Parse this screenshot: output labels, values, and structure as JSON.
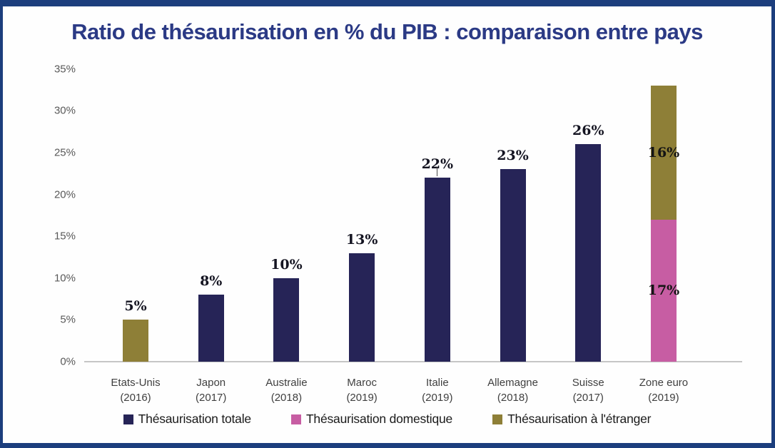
{
  "title": "Ratio de thésaurisation en % du PIB : comparaison entre pays",
  "colors": {
    "frame_border": "#1C3E7D",
    "background": "#FEFEFE",
    "title_text": "#2B3A85",
    "axis_line": "#C6C6C6",
    "ytick_text": "#595959",
    "xtick_text": "#3F3F3F",
    "bar_label_text": "#141414",
    "navy": "#262457",
    "pink": "#C75DA3",
    "olive": "#8E7F37"
  },
  "chart_data": {
    "type": "bar",
    "stacked": true,
    "title": "Ratio de thésaurisation en % du PIB : comparaison entre pays",
    "xlabel": "",
    "ylabel": "",
    "ylim": [
      0,
      35
    ],
    "grid": false,
    "legend_position": "bottom",
    "yticks": [
      {
        "label": "0%",
        "value": 0
      },
      {
        "label": "5%",
        "value": 5
      },
      {
        "label": "10%",
        "value": 10
      },
      {
        "label": "15%",
        "value": 15
      },
      {
        "label": "20%",
        "value": 20
      },
      {
        "label": "25%",
        "value": 25
      },
      {
        "label": "30%",
        "value": 30
      },
      {
        "label": "35%",
        "value": 35
      }
    ],
    "series": [
      {
        "name": "Thésaurisation totale",
        "key": "totale",
        "color": "#262457"
      },
      {
        "name": "Thésaurisation domestique",
        "key": "domestique",
        "color": "#C75DA3"
      },
      {
        "name": "Thésaurisation à l'étranger",
        "key": "etranger",
        "color": "#8E7F37"
      }
    ],
    "bars": [
      {
        "country": "Etats-Unis",
        "year": "(2016)",
        "top_label": "5%",
        "leader_line": false,
        "segments": [
          {
            "series": "etranger",
            "value": 5,
            "inner_label": null
          }
        ]
      },
      {
        "country": "Japon",
        "year": "(2017)",
        "top_label": "8%",
        "leader_line": false,
        "segments": [
          {
            "series": "totale",
            "value": 8,
            "inner_label": null
          }
        ]
      },
      {
        "country": "Australie",
        "year": "(2018)",
        "top_label": "10%",
        "leader_line": false,
        "segments": [
          {
            "series": "totale",
            "value": 10,
            "inner_label": null
          }
        ]
      },
      {
        "country": "Maroc",
        "year": "(2019)",
        "top_label": "13%",
        "leader_line": false,
        "segments": [
          {
            "series": "totale",
            "value": 13,
            "inner_label": null
          }
        ]
      },
      {
        "country": "Italie",
        "year": "(2019)",
        "top_label": "22%",
        "leader_line": true,
        "segments": [
          {
            "series": "totale",
            "value": 22,
            "inner_label": null
          }
        ]
      },
      {
        "country": "Allemagne",
        "year": "(2018)",
        "top_label": "23%",
        "leader_line": false,
        "segments": [
          {
            "series": "totale",
            "value": 23,
            "inner_label": null
          }
        ]
      },
      {
        "country": "Suisse",
        "year": "(2017)",
        "top_label": "26%",
        "leader_line": false,
        "segments": [
          {
            "series": "totale",
            "value": 26,
            "inner_label": null
          }
        ]
      },
      {
        "country": "Zone euro",
        "year": "(2019)",
        "top_label": null,
        "leader_line": false,
        "segments": [
          {
            "series": "domestique",
            "value": 17,
            "inner_label": "17%"
          },
          {
            "series": "etranger",
            "value": 16,
            "inner_label": "16%"
          }
        ]
      }
    ],
    "legend": [
      {
        "label": "Thésaurisation totale",
        "series": "totale"
      },
      {
        "label": "Thésaurisation domestique",
        "series": "domestique"
      },
      {
        "label": "Thésaurisation à l'étranger",
        "series": "etranger"
      }
    ]
  }
}
